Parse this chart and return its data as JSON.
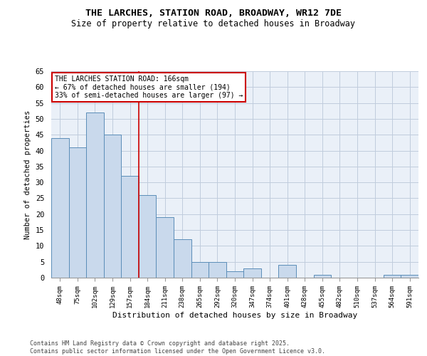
{
  "title_line1": "THE LARCHES, STATION ROAD, BROADWAY, WR12 7DE",
  "title_line2": "Size of property relative to detached houses in Broadway",
  "xlabel": "Distribution of detached houses by size in Broadway",
  "ylabel": "Number of detached properties",
  "categories": [
    "48sqm",
    "75sqm",
    "102sqm",
    "129sqm",
    "157sqm",
    "184sqm",
    "211sqm",
    "238sqm",
    "265sqm",
    "292sqm",
    "320sqm",
    "347sqm",
    "374sqm",
    "401sqm",
    "428sqm",
    "455sqm",
    "482sqm",
    "510sqm",
    "537sqm",
    "564sqm",
    "591sqm"
  ],
  "values": [
    44,
    41,
    52,
    45,
    32,
    26,
    19,
    12,
    5,
    5,
    2,
    3,
    0,
    4,
    0,
    1,
    0,
    0,
    0,
    1,
    1
  ],
  "bar_color": "#c9d9ec",
  "bar_edge_color": "#5b8db8",
  "grid_color": "#c0ccdd",
  "background_color": "#eaf0f8",
  "vline_x": 4.5,
  "vline_color": "#cc0000",
  "annotation_text": "THE LARCHES STATION ROAD: 166sqm\n← 67% of detached houses are smaller (194)\n33% of semi-detached houses are larger (97) →",
  "annotation_box_color": "#cc0000",
  "ylim": [
    0,
    65
  ],
  "yticks": [
    0,
    5,
    10,
    15,
    20,
    25,
    30,
    35,
    40,
    45,
    50,
    55,
    60,
    65
  ],
  "footer_line1": "Contains HM Land Registry data © Crown copyright and database right 2025.",
  "footer_line2": "Contains public sector information licensed under the Open Government Licence v3.0."
}
